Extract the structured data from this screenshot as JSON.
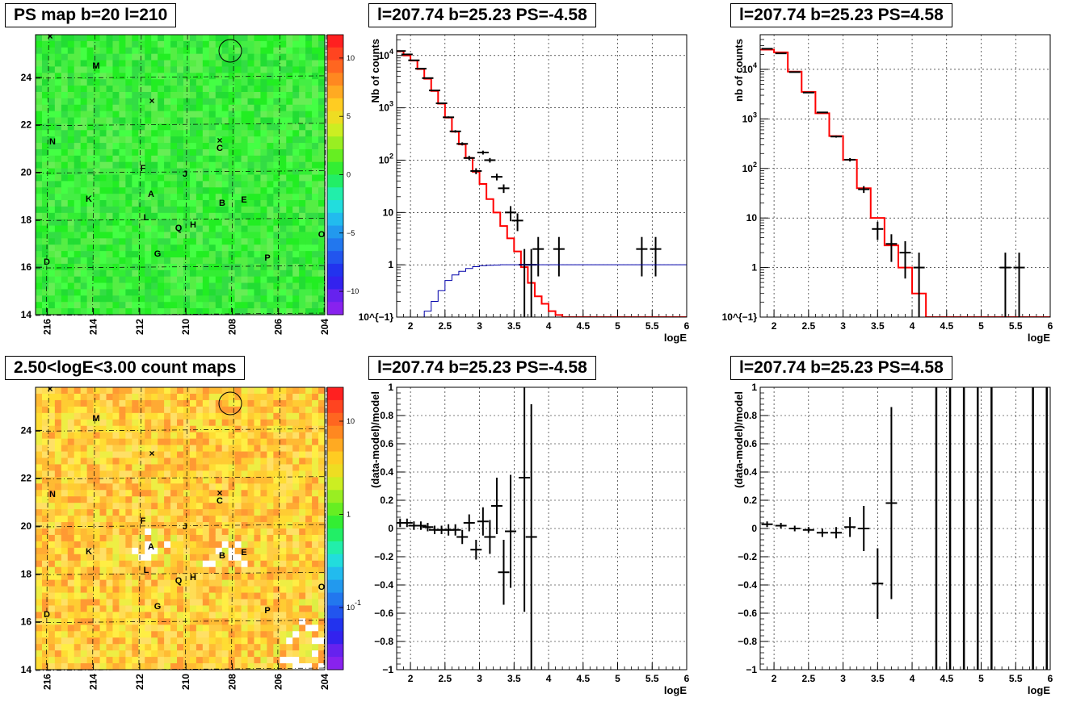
{
  "titles": {
    "map_top": "PS map b=20 l=210",
    "map_bottom": "2.50<logE<3.00 count maps",
    "spec_left": "l=207.74 b=25.23 PS=-4.58",
    "spec_right": "l=207.74 b=25.23 PS=4.58",
    "resid_left": "l=207.74 b=25.23 PS=-4.58",
    "resid_right": "l=207.74 b=25.23 PS=4.58"
  },
  "colors": {
    "model_line": "#ff0000",
    "exposure_line": "#0000aa",
    "data_marker": "#000000"
  },
  "chart_data": [
    {
      "id": "ps_map",
      "type": "heatmap",
      "title": "PS map b=20 l=210",
      "x_ticks": [
        "216",
        "214",
        "212",
        "210",
        "208",
        "206",
        "204"
      ],
      "y_ticks": [
        "14",
        "16",
        "18",
        "20",
        "22",
        "24"
      ],
      "xlim": [
        216.5,
        204
      ],
      "ylim": [
        14,
        25.8
      ],
      "colorbar_ticks": [
        "10",
        "5",
        "0",
        "-5",
        "-10"
      ],
      "colorbar_range": [
        -12,
        12
      ],
      "sources": [
        "M",
        "N",
        "F",
        "J",
        "K",
        "A",
        "B",
        "E",
        "L",
        "Q",
        "H",
        "G",
        "D",
        "P",
        "C",
        "O"
      ]
    },
    {
      "id": "count_map",
      "type": "heatmap",
      "title": "2.50<logE<3.00 count maps",
      "x_ticks": [
        "216",
        "214",
        "212",
        "210",
        "208",
        "206",
        "204"
      ],
      "y_ticks": [
        "14",
        "16",
        "18",
        "20",
        "22",
        "24"
      ],
      "xlim": [
        216.5,
        204
      ],
      "ylim": [
        14,
        25.8
      ],
      "colorbar_ticks": [
        "10",
        "1",
        "10^{-1}"
      ],
      "colorbar_scale": "log",
      "sources": [
        "M",
        "N",
        "F",
        "J",
        "K",
        "A",
        "B",
        "E",
        "L",
        "Q",
        "H",
        "G",
        "D",
        "P",
        "C",
        "O"
      ]
    },
    {
      "id": "spectrum_neg",
      "type": "line",
      "title": "l=207.74 b=25.23 PS=-4.58",
      "xlabel": "logE",
      "ylabel": "Nb of counts",
      "xlim": [
        1.8,
        6
      ],
      "ylim": [
        0.1,
        25000
      ],
      "yscale": "log",
      "x_ticks": [
        "2",
        "2.5",
        "3",
        "3.5",
        "4",
        "4.5",
        "5",
        "5.5",
        "6"
      ],
      "y_ticks": [
        "10^{-1}",
        "1",
        "10",
        "10^{2}",
        "10^{3}",
        "10^{4}"
      ],
      "series": [
        {
          "kind": "step",
          "edges": [
            1.8,
            1.9,
            2.0,
            2.1,
            2.2,
            2.3,
            2.4,
            2.5,
            2.6,
            2.7,
            2.8,
            2.9,
            3.0,
            3.1,
            3.2,
            3.3,
            3.4,
            3.5,
            3.6,
            3.7,
            3.8,
            3.9,
            4.0,
            4.1,
            4.2,
            6.0
          ],
          "values": [
            12000,
            10000,
            8000,
            5500,
            3600,
            2100,
            1200,
            650,
            350,
            200,
            110,
            60,
            35,
            18,
            10,
            5.5,
            3.2,
            1.8,
            0.9,
            0.45,
            0.25,
            0.18,
            0.13,
            0.11,
            0.1
          ]
        },
        {
          "kind": "data",
          "x": [
            1.85,
            1.95,
            2.05,
            2.15,
            2.25,
            2.35,
            2.45,
            2.55,
            2.65,
            2.75,
            2.85,
            2.95,
            3.05,
            3.15,
            3.25,
            3.35,
            3.45,
            3.55,
            3.65,
            3.75,
            3.85,
            4.15,
            5.35,
            5.55
          ],
          "y": [
            12200,
            10500,
            8100,
            5600,
            3700,
            2150,
            1220,
            660,
            355,
            205,
            110,
            62,
            140,
            100,
            48,
            29,
            10,
            7,
            1,
            1,
            2,
            2,
            2,
            2
          ],
          "yerr": [
            110,
            100,
            90,
            75,
            61,
            46,
            35,
            26,
            19,
            14,
            10.5,
            8,
            12,
            10,
            7,
            5.4,
            3.2,
            2.6,
            1,
            1,
            1.4,
            1.4,
            1.4,
            1.4
          ]
        },
        {
          "kind": "exposure",
          "x": [
            2.15,
            2.2,
            2.3,
            2.4,
            2.5,
            2.6,
            2.7,
            2.8,
            2.9,
            3.0,
            3.1,
            3.2,
            3.3,
            3.5,
            6.0
          ],
          "y": [
            0.1,
            0.13,
            0.2,
            0.32,
            0.5,
            0.64,
            0.75,
            0.85,
            0.92,
            0.96,
            0.98,
            0.99,
            1.0,
            1.0,
            1.0
          ]
        }
      ]
    },
    {
      "id": "spectrum_pos",
      "type": "line",
      "title": "l=207.74 b=25.23 PS=4.58",
      "xlabel": "logE",
      "ylabel": "nb of counts",
      "xlim": [
        1.8,
        6
      ],
      "ylim": [
        0.1,
        50000
      ],
      "yscale": "log",
      "x_ticks": [
        "2",
        "2.5",
        "3",
        "3.5",
        "4",
        "4.5",
        "5",
        "5.5",
        "6"
      ],
      "y_ticks": [
        "10^{-1}",
        "1",
        "10",
        "10^{2}",
        "10^{3}",
        "10^{4}"
      ],
      "series": [
        {
          "kind": "step",
          "edges": [
            1.8,
            2.0,
            2.2,
            2.4,
            2.6,
            2.8,
            3.0,
            3.2,
            3.4,
            3.6,
            3.8,
            4.0,
            4.2,
            6.0
          ],
          "values": [
            25000,
            22000,
            9000,
            3500,
            1300,
            450,
            150,
            40,
            10,
            2.8,
            1,
            0.3,
            0.1
          ]
        },
        {
          "kind": "data",
          "x": [
            1.9,
            2.1,
            2.3,
            2.5,
            2.7,
            2.9,
            3.1,
            3.3,
            3.5,
            3.7,
            3.9,
            4.1,
            5.35,
            5.55
          ],
          "y": [
            26000,
            21000,
            8800,
            3400,
            1350,
            440,
            150,
            38,
            6,
            3,
            2,
            1,
            1,
            1
          ],
          "yerr": [
            160,
            145,
            94,
            58,
            37,
            21,
            12,
            6,
            2.4,
            1.7,
            1.4,
            1,
            1,
            1
          ]
        }
      ]
    },
    {
      "id": "residual_neg",
      "type": "scatter",
      "title": "l=207.74 b=25.23 PS=-4.58",
      "xlabel": "logE",
      "ylabel": "(data-model)/model",
      "xlim": [
        1.8,
        6
      ],
      "ylim": [
        -1,
        1
      ],
      "x_ticks": [
        "2",
        "2.5",
        "3",
        "3.5",
        "4",
        "4.5",
        "5",
        "5.5",
        "6"
      ],
      "y_ticks": [
        "-1",
        "-0.8",
        "-0.6",
        "-0.4",
        "-0.2",
        "0",
        "0.2",
        "0.4",
        "0.6",
        "0.8",
        "1"
      ],
      "series": [
        {
          "name": "",
          "x": [
            1.85,
            1.95,
            2.05,
            2.15,
            2.25,
            2.35,
            2.45,
            2.55,
            2.65,
            2.75,
            2.85,
            2.95,
            3.05,
            3.15,
            3.25,
            3.35,
            3.45,
            3.65,
            3.75
          ],
          "y": [
            0.04,
            0.04,
            0.02,
            0.02,
            0.01,
            -0.01,
            -0.01,
            -0.01,
            -0.01,
            -0.06,
            0.04,
            -0.15,
            0.05,
            -0.06,
            0.16,
            -0.31,
            -0.02,
            0.36,
            -0.06
          ],
          "yerr": [
            0.03,
            0.03,
            0.03,
            0.03,
            0.03,
            0.03,
            0.03,
            0.04,
            0.04,
            0.05,
            0.06,
            0.07,
            0.1,
            0.12,
            0.2,
            0.23,
            0.4,
            0.95,
            0.94
          ]
        }
      ]
    },
    {
      "id": "residual_pos",
      "type": "scatter",
      "title": "l=207.74 b=25.23 PS=4.58",
      "xlabel": "logE",
      "ylabel": "(data-model)/model",
      "xlim": [
        1.8,
        6
      ],
      "ylim": [
        -1,
        1
      ],
      "x_ticks": [
        "2",
        "2.5",
        "3",
        "3.5",
        "4",
        "4.5",
        "5",
        "5.5",
        "6"
      ],
      "y_ticks": [
        "-1",
        "-0.8",
        "-0.6",
        "-0.4",
        "-0.2",
        "0",
        "0.2",
        "0.4",
        "0.6",
        "0.8",
        "1"
      ],
      "series": [
        {
          "name": "",
          "x": [
            1.9,
            2.1,
            2.3,
            2.5,
            2.7,
            2.9,
            3.1,
            3.3,
            3.5,
            3.7
          ],
          "y": [
            0.03,
            0.02,
            0.0,
            -0.01,
            -0.03,
            -0.03,
            0.01,
            0.0,
            -0.39,
            0.18
          ],
          "yerr": [
            0.02,
            0.02,
            0.02,
            0.02,
            0.03,
            0.04,
            0.07,
            0.16,
            0.25,
            0.68
          ]
        },
        {
          "name": "",
          "kind": "full-range-bars",
          "x": [
            4.35,
            4.55,
            4.75,
            4.95,
            5.15,
            5.75,
            5.95
          ]
        }
      ]
    }
  ]
}
